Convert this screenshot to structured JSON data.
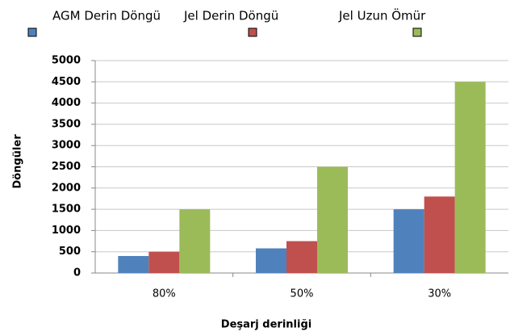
{
  "chart_data": {
    "type": "bar",
    "x_label": "Deşarj derinliği",
    "y_label": "Döngüler",
    "categories": [
      "80%",
      "50%",
      "30%"
    ],
    "series": [
      {
        "name": "AGM Derin Döngü",
        "color": "#4f81bd",
        "values": [
          400,
          580,
          1500
        ]
      },
      {
        "name": "Jel Derin Döngü",
        "color": "#c0504d",
        "values": [
          500,
          750,
          1800
        ]
      },
      {
        "name": "Jel Uzun Ömür",
        "color": "#9bbb59",
        "values": [
          1500,
          2500,
          4500
        ]
      }
    ],
    "ylim": [
      0,
      5000
    ],
    "yticks": [
      0,
      500,
      1000,
      1500,
      2000,
      2500,
      3000,
      3500,
      4000,
      4500,
      5000
    ],
    "grid": true,
    "legend": "top"
  }
}
